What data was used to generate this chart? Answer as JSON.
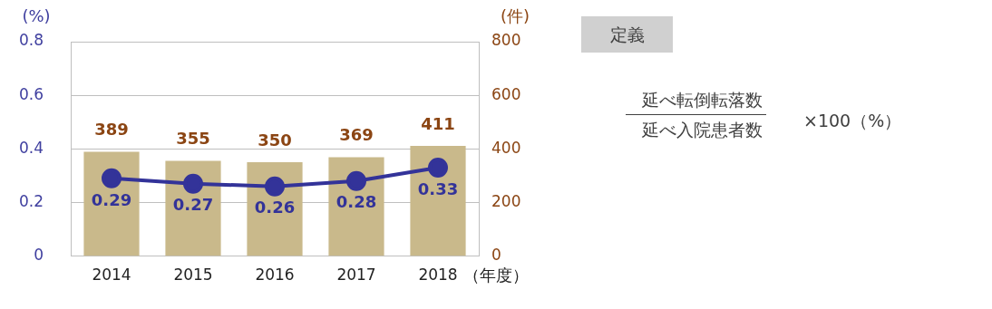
{
  "chart_data": {
    "type": "bar",
    "categories": [
      "2014",
      "2015",
      "2016",
      "2017",
      "2018"
    ],
    "xlabel": "（年度）",
    "ylabel": "(%)",
    "y2label": "(件)",
    "series": [
      {
        "axis": "y2",
        "color": "#c9b98b",
        "values": [
          389,
          355,
          350,
          369,
          411
        ]
      },
      {
        "type": "line",
        "color": "#333399",
        "values": [
          0.29,
          0.27,
          0.26,
          0.28,
          0.33
        ]
      }
    ],
    "ylim": [
      0,
      0.8
    ],
    "yticks": [
      {
        "value": 0,
        "label": "0"
      },
      0.2,
      0.4,
      0.6,
      0.8
    ],
    "y2lim": [
      0,
      800
    ],
    "y2ticks": [
      0,
      200,
      400,
      600,
      800
    ],
    "grid": "y",
    "marker": "circle",
    "line_style": "solid",
    "data_labels": true,
    "legend": false,
    "annotations": [
      "定義",
      "延べ転倒転落数",
      "延べ入院患者数",
      "×100（%）"
    ]
  }
}
